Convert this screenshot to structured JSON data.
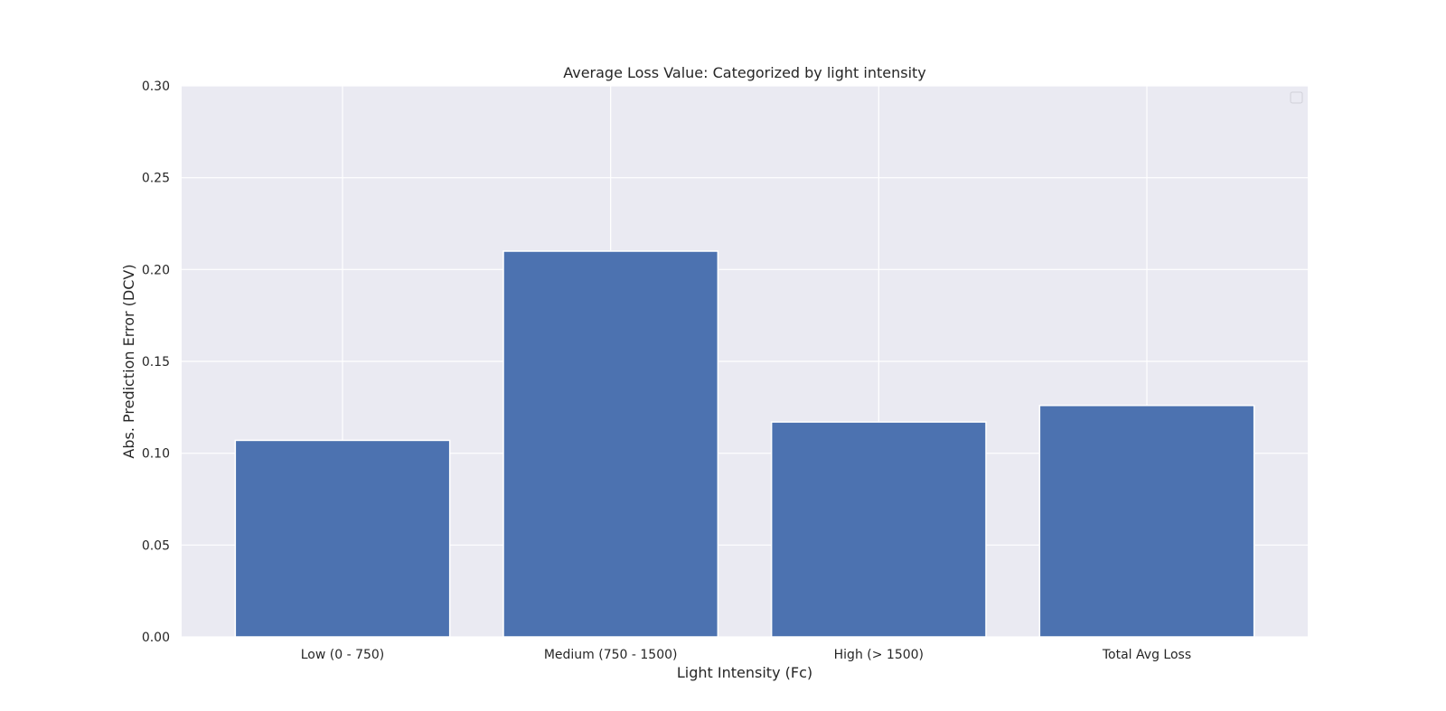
{
  "chart_data": {
    "type": "bar",
    "title": "Average Loss Value: Categorized by light intensity",
    "xlabel": "Light Intensity (Fc)",
    "ylabel": "Abs. Prediction Error (DCV)",
    "categories": [
      "Low (0 - 750)",
      "Medium (750 - 1500)",
      "High (> 1500)",
      "Total Avg Loss"
    ],
    "values": [
      0.107,
      0.21,
      0.117,
      0.126
    ],
    "ylim": [
      0,
      0.3
    ],
    "yticks": [
      0.0,
      0.05,
      0.1,
      0.15,
      0.2,
      0.25,
      0.3
    ],
    "ytick_labels": [
      "0.00",
      "0.05",
      "0.10",
      "0.15",
      "0.20",
      "0.25",
      "0.30"
    ],
    "grid": true,
    "legend": {
      "placement": "top-right",
      "entries": []
    },
    "colors": {
      "bar": "#4c72b0",
      "plot_bg": "#eaeaf2",
      "grid": "#ffffff"
    }
  }
}
